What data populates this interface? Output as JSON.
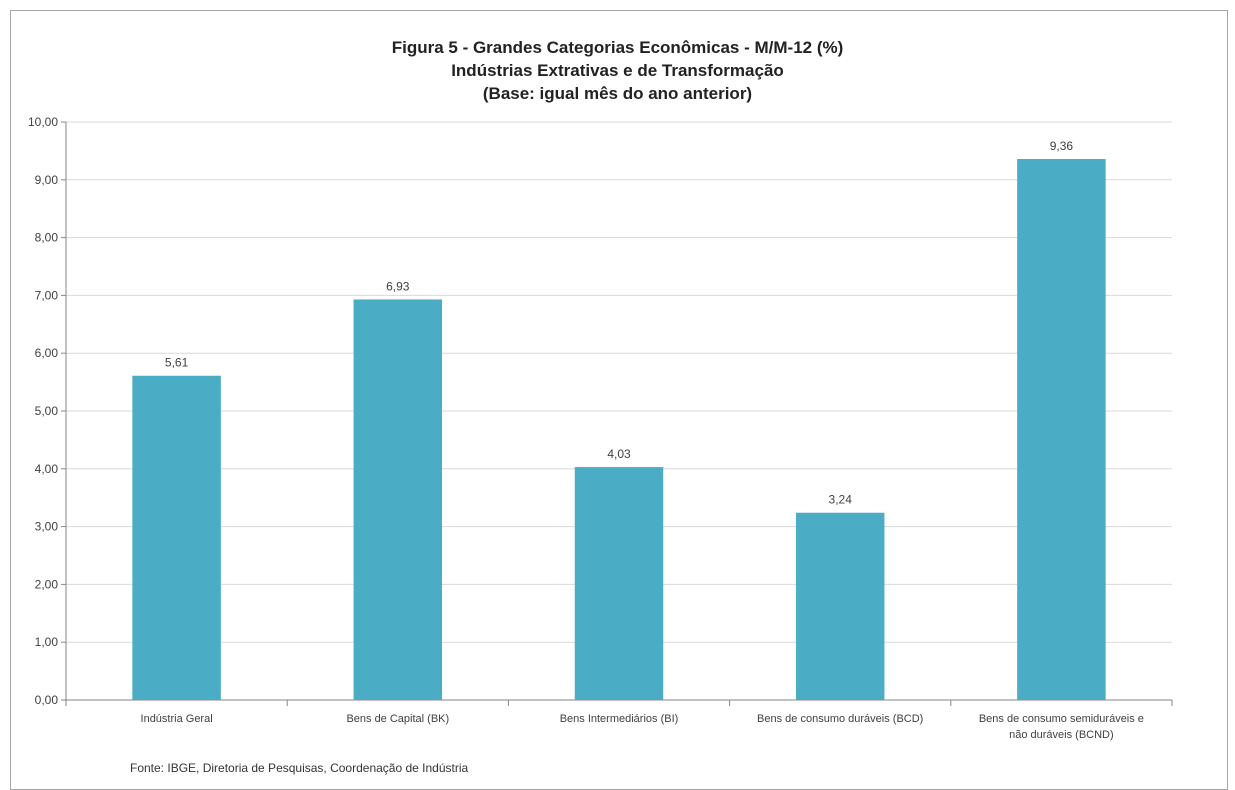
{
  "chart_data": {
    "type": "bar",
    "title": "Figura 5 - Grandes Categorias Econômicas - M/M-12 (%)",
    "subtitle": [
      "Indústrias  Extrativas e de Transformação",
      "(Base: igual mês do ano anterior)"
    ],
    "categories": [
      [
        "Indústria Geral"
      ],
      [
        "Bens de Capital (BK)"
      ],
      [
        "Bens Intermediários (BI)"
      ],
      [
        "Bens de consumo duráveis (BCD)"
      ],
      [
        "Bens de consumo semiduráveis e",
        "não duráveis (BCND)"
      ]
    ],
    "values": [
      5.61,
      6.93,
      4.03,
      3.24,
      9.36
    ],
    "value_labels": [
      "5,61",
      "6,93",
      "4,03",
      "3,24",
      "9,36"
    ],
    "ylim": [
      0,
      10
    ],
    "yticks": [
      "0,00",
      "1,00",
      "2,00",
      "3,00",
      "4,00",
      "5,00",
      "6,00",
      "7,00",
      "8,00",
      "9,00",
      "10,00"
    ],
    "xlabel": "",
    "ylabel": "",
    "grid": true,
    "bar_color": "#4BACC6",
    "grid_color": "#d9d9d9",
    "axis_color": "#868686"
  },
  "source": "Fonte: IBGE, Diretoria de Pesquisas, Coordenação de Indústria"
}
